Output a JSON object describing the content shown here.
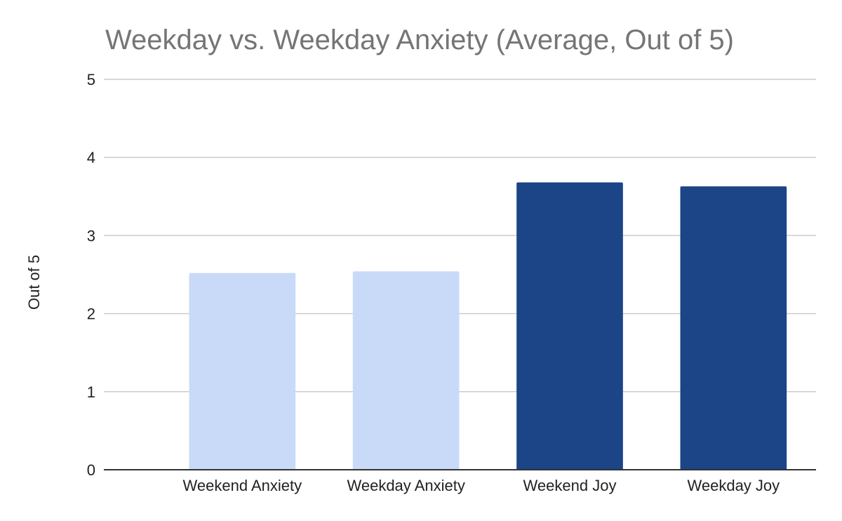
{
  "chart_data": {
    "type": "bar",
    "title": "Weekday vs. Weekday Anxiety (Average, Out of 5)",
    "xlabel": "",
    "ylabel": "Out of 5",
    "categories": [
      "Weekend Anxiety",
      "Weekday Anxiety",
      "Weekend Joy",
      "Weekday Joy"
    ],
    "values": [
      2.52,
      2.54,
      3.68,
      3.63
    ],
    "colors": [
      "#c9daf8",
      "#c9daf8",
      "#1c4587",
      "#1c4587"
    ],
    "ylim": [
      0,
      5
    ],
    "yticks": [
      "0",
      "1",
      "2",
      "3",
      "4",
      "5"
    ],
    "grid": true,
    "legend": "none"
  }
}
